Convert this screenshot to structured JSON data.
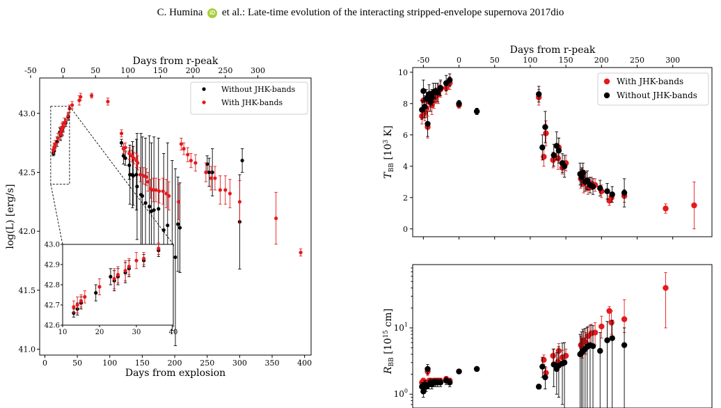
{
  "header": {
    "author": "C. Humina",
    "orcid_icon": "iD",
    "rest": "et al.: Late-time evolution of the interacting stripped-envelope supernova 2017dio"
  },
  "colors": {
    "with": "#e41a1c",
    "without": "#000000",
    "error_with": "#e41a1c",
    "error_without": "#000000"
  },
  "chart_data": [
    {
      "id": "lum",
      "type": "scatter",
      "xlabel": "Days from explosion",
      "ylabel": "log(L) [erg/s]",
      "top_xlabel": "Days from r-peak",
      "xlim": [
        -8,
        410
      ],
      "ylim": [
        40.95,
        43.3
      ],
      "xticks": [
        0,
        50,
        100,
        150,
        200,
        250,
        300,
        350,
        400
      ],
      "yticks": [
        41.0,
        41.5,
        42.0,
        42.5,
        43.0
      ],
      "top_ticks": [
        -50,
        0,
        50,
        100,
        150,
        200,
        250,
        300
      ],
      "top_offset": 28,
      "legend": {
        "position": "top-right",
        "entries": [
          "Without JHK-bands",
          "With JHK-bands"
        ]
      },
      "grid": false,
      "series": [
        {
          "name": "Without JHK-bands",
          "x": [
            13,
            14,
            15,
            19,
            23,
            24,
            25,
            27,
            28,
            32,
            36,
            118,
            121,
            124,
            130,
            131,
            135,
            136,
            141,
            142,
            148,
            150,
            155,
            161,
            164,
            168,
            175,
            183,
            189,
            196,
            201,
            205,
            208,
            250,
            253,
            258,
            300,
            304
          ],
          "y": [
            42.66,
            42.68,
            42.71,
            42.76,
            42.84,
            42.82,
            42.84,
            42.86,
            42.88,
            42.92,
            42.97,
            42.75,
            42.64,
            42.62,
            42.56,
            42.48,
            42.48,
            42.47,
            42.48,
            42.38,
            42.31,
            42.3,
            42.24,
            42.21,
            42.17,
            42.18,
            42.19,
            42.01,
            42.05,
            41.88,
            41.78,
            42.06,
            42.03,
            42.57,
            42.5,
            42.5,
            42.08,
            42.6
          ],
          "err": [
            0.02,
            0.03,
            0.03,
            0.04,
            0.04,
            0.05,
            0.04,
            0.05,
            0.04,
            0.03,
            0.03,
            0.03,
            0.07,
            0.06,
            0.12,
            0.25,
            0.28,
            0.25,
            0.3,
            0.45,
            0.52,
            0.5,
            0.55,
            0.6,
            0.58,
            0.62,
            0.6,
            0.65,
            0.7,
            0.72,
            0.75,
            0.4,
            0.38,
            0.07,
            0.12,
            0.2,
            0.4,
            0.1
          ]
        },
        {
          "name": "With JHK-bands",
          "x": [
            13,
            14,
            15,
            16,
            20,
            24,
            25,
            27,
            28,
            30,
            32,
            36,
            38,
            42,
            53,
            55,
            72,
            97,
            118,
            121,
            124,
            130,
            134,
            137,
            141,
            143,
            147,
            152,
            156,
            159,
            163,
            167,
            171,
            176,
            182,
            187,
            191,
            206,
            210,
            214,
            220,
            225,
            232,
            248,
            256,
            262,
            270,
            278,
            285,
            300,
            356,
            394
          ],
          "y": [
            42.69,
            42.7,
            42.72,
            42.74,
            42.79,
            42.83,
            42.85,
            42.87,
            42.89,
            42.92,
            42.93,
            42.98,
            43.04,
            43.07,
            43.11,
            43.14,
            43.15,
            43.1,
            42.83,
            42.7,
            42.71,
            42.66,
            42.64,
            42.62,
            42.6,
            42.58,
            42.48,
            42.47,
            42.46,
            42.42,
            42.36,
            42.35,
            42.35,
            42.34,
            42.34,
            42.32,
            42.3,
            42.25,
            42.74,
            42.7,
            42.65,
            42.6,
            42.58,
            42.5,
            42.45,
            42.45,
            42.35,
            42.35,
            42.32,
            42.25,
            42.11,
            41.82
          ],
          "err": [
            0.03,
            0.04,
            0.03,
            0.03,
            0.04,
            0.05,
            0.04,
            0.05,
            0.04,
            0.04,
            0.03,
            0.03,
            0.03,
            0.03,
            0.04,
            0.03,
            0.02,
            0.03,
            0.03,
            0.04,
            0.04,
            0.05,
            0.05,
            0.05,
            0.06,
            0.06,
            0.06,
            0.07,
            0.07,
            0.08,
            0.08,
            0.1,
            0.1,
            0.1,
            0.11,
            0.12,
            0.12,
            0.15,
            0.05,
            0.05,
            0.06,
            0.06,
            0.07,
            0.08,
            0.1,
            0.1,
            0.12,
            0.12,
            0.12,
            0.18,
            0.22,
            0.03
          ]
        }
      ]
    },
    {
      "id": "inset",
      "type": "scatter",
      "xlim": [
        10,
        40
      ],
      "ylim": [
        42.6,
        43.0
      ],
      "xticks": [
        10,
        20,
        30,
        40
      ],
      "yticks": [
        42.6,
        42.7,
        42.8,
        42.9,
        43.0
      ],
      "series": [
        {
          "name": "Without JHK-bands",
          "x": [
            13,
            14,
            15,
            19,
            23,
            24,
            25,
            27,
            28,
            32,
            36
          ],
          "y": [
            42.66,
            42.68,
            42.71,
            42.76,
            42.84,
            42.82,
            42.84,
            42.86,
            42.88,
            42.92,
            42.97
          ],
          "err": [
            0.02,
            0.03,
            0.03,
            0.04,
            0.04,
            0.05,
            0.04,
            0.05,
            0.04,
            0.03,
            0.03
          ]
        },
        {
          "name": "With JHK-bands",
          "x": [
            13,
            14,
            15,
            16,
            20,
            24,
            25,
            27,
            28,
            30,
            32,
            36
          ],
          "y": [
            42.69,
            42.7,
            42.72,
            42.74,
            42.79,
            42.83,
            42.85,
            42.87,
            42.89,
            42.92,
            42.93,
            42.98
          ],
          "err": [
            0.03,
            0.04,
            0.03,
            0.03,
            0.04,
            0.05,
            0.04,
            0.05,
            0.04,
            0.04,
            0.03,
            0.03
          ]
        }
      ]
    },
    {
      "id": "temp",
      "type": "scatter",
      "ylabel": "T_BB [10^3 K]",
      "top_xlabel": "Days from r-peak",
      "xlim": [
        -65,
        355
      ],
      "ylim": [
        -0.5,
        10.3
      ],
      "yticks": [
        0,
        2,
        4,
        6,
        8,
        10
      ],
      "top_ticks": [
        -50,
        0,
        50,
        100,
        150,
        200,
        250,
        300
      ],
      "legend": {
        "position": "top-right",
        "entries": [
          "With JHK-bands",
          "Without JHK-bands"
        ]
      },
      "series": [
        {
          "name": "With JHK-bands",
          "x": [
            -52,
            -50,
            -48,
            -46,
            -44,
            -42,
            -40,
            -38,
            -35,
            -32,
            -29,
            -26,
            -18,
            -13,
            0,
            25,
            112,
            119,
            122,
            132,
            139,
            140,
            145,
            150,
            171,
            173,
            175,
            178,
            181,
            186,
            191,
            200,
            211,
            214,
            232,
            290,
            330
          ],
          "y": [
            7.2,
            8.2,
            7.4,
            7.7,
            6.5,
            8.1,
            8.3,
            7.9,
            8.2,
            8.5,
            8.6,
            8.9,
            9.0,
            9.3,
            7.9,
            7.5,
            8.4,
            4.6,
            6.1,
            4.4,
            4.5,
            5.2,
            3.9,
            4.2,
            3.2,
            3.4,
            2.9,
            3.1,
            2.6,
            2.9,
            2.8,
            2.4,
            1.8,
            2.0,
            2.1,
            1.3,
            1.5
          ],
          "err": [
            0.5,
            0.6,
            0.5,
            0.6,
            0.7,
            0.6,
            0.5,
            0.6,
            0.5,
            0.5,
            0.6,
            0.5,
            0.4,
            0.4,
            0.2,
            0.2,
            0.5,
            0.6,
            0.8,
            0.5,
            0.7,
            0.6,
            0.4,
            0.5,
            0.6,
            0.5,
            0.6,
            0.5,
            0.4,
            0.4,
            0.4,
            0.4,
            0.3,
            0.3,
            0.4,
            0.3,
            1.5
          ]
        },
        {
          "name": "Without JHK-bands",
          "x": [
            -52,
            -50,
            -48,
            -46,
            -44,
            -42,
            -40,
            -38,
            -36,
            -33,
            -30,
            -26,
            -18,
            -13,
            0,
            25,
            112,
            117,
            121,
            133,
            137,
            140,
            145,
            148,
            170,
            172,
            174,
            177,
            180,
            184,
            188,
            198,
            208,
            215,
            232
          ],
          "y": [
            7.6,
            8.8,
            7.8,
            8.3,
            6.7,
            8.6,
            8.1,
            8.4,
            8.7,
            8.8,
            8.7,
            9.0,
            9.3,
            9.5,
            8.0,
            7.5,
            8.6,
            5.2,
            6.5,
            4.7,
            5.3,
            5.0,
            4.2,
            4.0,
            3.5,
            3.3,
            3.6,
            3.0,
            3.1,
            2.8,
            2.7,
            2.6,
            2.4,
            2.2,
            2.3
          ],
          "err": [
            0.6,
            0.7,
            0.7,
            0.6,
            0.8,
            0.6,
            0.6,
            0.5,
            0.6,
            0.5,
            0.6,
            0.5,
            0.5,
            0.4,
            0.2,
            0.2,
            0.5,
            0.8,
            1.0,
            0.7,
            0.9,
            0.8,
            0.6,
            0.7,
            0.7,
            0.6,
            0.6,
            0.6,
            0.6,
            0.5,
            0.5,
            0.5,
            0.5,
            0.5,
            0.9
          ]
        }
      ]
    },
    {
      "id": "radius",
      "type": "scatter",
      "ylabel": "R_BB [10^15 cm]",
      "scale_y": "log",
      "xlim": [
        -65,
        355
      ],
      "ylim": [
        0.62,
        90
      ],
      "ytick_labels": [
        "10^0",
        "10^1"
      ],
      "series": [
        {
          "name": "With JHK-bands",
          "x": [
            -52,
            -50,
            -48,
            -46,
            -44,
            -42,
            -40,
            -38,
            -35,
            -32,
            -29,
            -26,
            -18,
            -13,
            0,
            25,
            112,
            119,
            122,
            132,
            139,
            140,
            145,
            150,
            171,
            173,
            175,
            178,
            181,
            186,
            191,
            200,
            211,
            214,
            232,
            290
          ],
          "y": [
            1.5,
            1.6,
            1.5,
            1.5,
            2.2,
            1.6,
            1.6,
            1.5,
            1.6,
            1.6,
            1.6,
            1.6,
            1.7,
            1.6,
            2.2,
            2.4,
            1.3,
            3.3,
            2.1,
            3.8,
            3.1,
            4.5,
            3.6,
            3.8,
            5.5,
            5.0,
            6.5,
            6.0,
            7.5,
            8.3,
            8.5,
            10.5,
            18.0,
            12.0,
            13.5,
            40.0
          ],
          "err_lo": [
            0.15,
            0.15,
            0.15,
            0.15,
            0.3,
            0.15,
            0.15,
            0.15,
            0.15,
            0.15,
            0.15,
            0.15,
            0.15,
            0.15,
            0.15,
            0.15,
            0.1,
            0.5,
            0.3,
            0.8,
            0.7,
            1.0,
            0.8,
            0.8,
            1.5,
            1.5,
            2.0,
            2.0,
            2.5,
            2.5,
            3.0,
            3.5,
            6.0,
            4.0,
            5.0,
            30.0
          ],
          "err_hi": [
            0.15,
            0.15,
            0.15,
            0.15,
            0.3,
            0.15,
            0.15,
            0.15,
            0.15,
            0.15,
            0.15,
            0.15,
            0.15,
            0.15,
            0.15,
            0.15,
            0.1,
            0.6,
            0.4,
            1.0,
            0.9,
            1.3,
            1.0,
            1.0,
            2.0,
            2.0,
            2.5,
            2.5,
            3.0,
            3.0,
            3.5,
            4.5,
            3.0,
            6.0,
            13.0,
            28.0
          ]
        },
        {
          "name": "Without JHK-bands",
          "x": [
            -52,
            -50,
            -48,
            -46,
            -44,
            -42,
            -40,
            -38,
            -36,
            -33,
            -30,
            -26,
            -18,
            -13,
            0,
            25,
            112,
            117,
            121,
            133,
            137,
            140,
            145,
            148,
            170,
            172,
            174,
            177,
            180,
            184,
            188,
            198,
            208,
            215,
            232
          ],
          "y": [
            1.3,
            1.1,
            1.4,
            1.3,
            2.4,
            1.4,
            1.5,
            1.4,
            1.5,
            1.5,
            1.5,
            1.5,
            1.6,
            1.5,
            2.2,
            2.4,
            1.3,
            2.6,
            1.8,
            2.8,
            2.4,
            2.7,
            2.9,
            3.0,
            4.0,
            4.2,
            4.5,
            4.8,
            5.2,
            5.5,
            5.3,
            4.5,
            6.5,
            7.0,
            5.5
          ],
          "err_lo": [
            0.2,
            0.2,
            0.2,
            0.2,
            0.4,
            0.2,
            0.2,
            0.2,
            0.2,
            0.2,
            0.2,
            0.2,
            0.2,
            0.2,
            0.15,
            0.15,
            0.1,
            0.8,
            0.6,
            1.5,
            1.4,
            1.8,
            2.2,
            2.4,
            3.4,
            3.6,
            3.9,
            4.2,
            4.6,
            4.9,
            4.7,
            3.9,
            5.9,
            6.4,
            4.9
          ],
          "err_hi": [
            0.2,
            0.2,
            0.2,
            0.2,
            0.4,
            0.2,
            0.2,
            0.2,
            0.2,
            0.2,
            0.2,
            0.2,
            0.2,
            0.2,
            0.15,
            0.15,
            0.1,
            1.0,
            0.8,
            2.0,
            1.8,
            2.5,
            3.0,
            3.0,
            4.0,
            4.5,
            5.0,
            5.0,
            5.0,
            5.5,
            5.5,
            4.0,
            6.0,
            6.0,
            4.5
          ]
        }
      ]
    }
  ]
}
